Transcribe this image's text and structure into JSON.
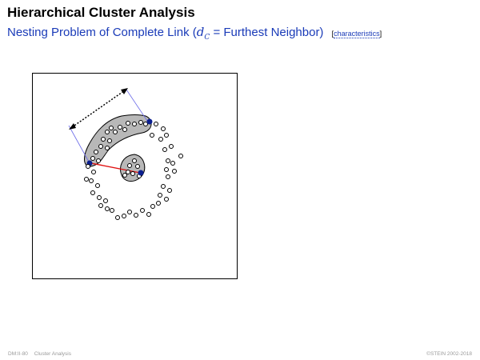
{
  "slide": {
    "title": "Hierarchical Cluster Analysis",
    "subtitle_prefix": "Nesting Problem of Complete Link (",
    "subtitle_math_d": "d",
    "subtitle_math_sub": "C",
    "subtitle_suffix": " = Furthest Neighbor)",
    "link_open": "[",
    "link_text": "characteristics",
    "link_close": "]"
  },
  "footer": {
    "page": "DM:II-80",
    "section": "Cluster Analysis",
    "copyright": "©STEIN 2002-2018"
  },
  "colors": {
    "subtitle": "#1a3bb8",
    "cluster_fill": "#b8b8b8",
    "highlight_point": "#0b1f8f",
    "link_line": "#e01010",
    "tangent_line": "#6a6ae8"
  }
}
